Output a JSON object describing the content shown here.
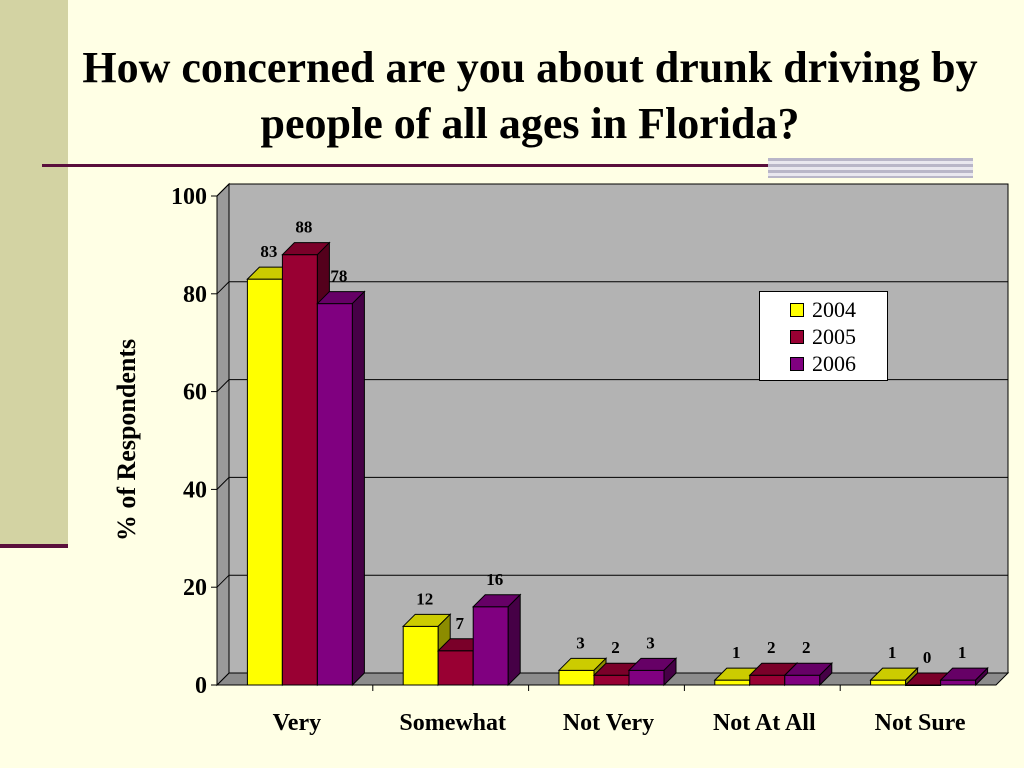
{
  "title": "How concerned are you about drunk driving by people of all ages in Florida?",
  "colors": {
    "2004": "#ffff00",
    "2005": "#990033",
    "2006": "#800080"
  },
  "chart_data": {
    "type": "bar",
    "title": "How concerned are you about drunk driving by people of all ages in Florida?",
    "xlabel": "",
    "ylabel": "% of Respondents",
    "ylim": [
      0,
      100
    ],
    "yticks": [
      "0",
      "20",
      "40",
      "60",
      "80",
      "100"
    ],
    "grid": true,
    "legend_position": "right",
    "categories": [
      "Very",
      "Somewhat",
      "Not Very",
      "Not At All",
      "Not Sure"
    ],
    "series": [
      {
        "name": "2004",
        "values": [
          83,
          12,
          3,
          1,
          1
        ]
      },
      {
        "name": "2005",
        "values": [
          88,
          7,
          2,
          2,
          0
        ]
      },
      {
        "name": "2006",
        "values": [
          78,
          16,
          3,
          2,
          1
        ]
      }
    ]
  }
}
